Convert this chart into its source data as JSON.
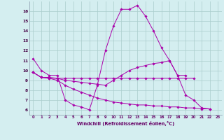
{
  "xlabel": "Windchill (Refroidissement éolien,°C)",
  "background_color": "#d4eef0",
  "line_color": "#aa00aa",
  "grid_color": "#aacccc",
  "xlim": [
    -0.5,
    23.5
  ],
  "ylim": [
    5.5,
    17.0
  ],
  "yticks": [
    6,
    7,
    8,
    9,
    10,
    11,
    12,
    13,
    14,
    15,
    16
  ],
  "xticks": [
    0,
    1,
    2,
    3,
    4,
    5,
    6,
    7,
    8,
    9,
    10,
    11,
    12,
    13,
    14,
    15,
    16,
    17,
    18,
    19,
    20,
    21,
    22,
    23
  ],
  "series": [
    {
      "x": [
        0,
        1,
        2,
        3,
        4,
        5,
        6,
        7,
        8,
        9,
        10,
        11,
        12,
        13,
        14,
        15,
        16,
        17,
        18,
        19,
        20,
        21,
        22
      ],
      "y": [
        11.2,
        10.0,
        9.5,
        9.5,
        7.0,
        6.5,
        6.3,
        6.0,
        8.5,
        12.0,
        14.5,
        16.2,
        16.2,
        16.6,
        15.5,
        14.0,
        12.3,
        11.0,
        9.5,
        7.5,
        7.0,
        6.2,
        6.1
      ]
    },
    {
      "x": [
        0,
        1,
        2,
        3,
        4,
        5,
        6,
        7,
        8,
        9,
        10,
        11,
        12,
        13,
        14,
        15,
        16,
        17,
        18,
        19,
        20
      ],
      "y": [
        9.8,
        9.3,
        9.2,
        9.2,
        9.2,
        9.2,
        9.2,
        9.2,
        9.2,
        9.2,
        9.2,
        9.2,
        9.2,
        9.2,
        9.2,
        9.2,
        9.2,
        9.2,
        9.2,
        9.2,
        9.2
      ]
    },
    {
      "x": [
        0,
        1,
        2,
        3,
        4,
        5,
        6,
        7,
        8,
        9,
        10,
        11,
        12,
        13,
        14,
        15,
        16,
        17,
        18,
        19,
        20,
        21,
        22
      ],
      "y": [
        9.8,
        9.3,
        9.2,
        9.0,
        8.5,
        8.1,
        7.8,
        7.5,
        7.2,
        7.0,
        6.8,
        6.7,
        6.6,
        6.5,
        6.5,
        6.4,
        6.4,
        6.3,
        6.3,
        6.2,
        6.2,
        6.1,
        6.1
      ]
    },
    {
      "x": [
        0,
        1,
        2,
        3,
        4,
        5,
        6,
        7,
        8,
        9,
        10,
        11,
        12,
        13,
        14,
        15,
        16,
        17,
        18,
        19
      ],
      "y": [
        9.8,
        9.3,
        9.3,
        9.2,
        9.0,
        8.9,
        8.8,
        8.7,
        8.6,
        8.5,
        9.0,
        9.5,
        10.0,
        10.3,
        10.5,
        10.7,
        10.8,
        11.0,
        9.5,
        9.5
      ]
    }
  ]
}
